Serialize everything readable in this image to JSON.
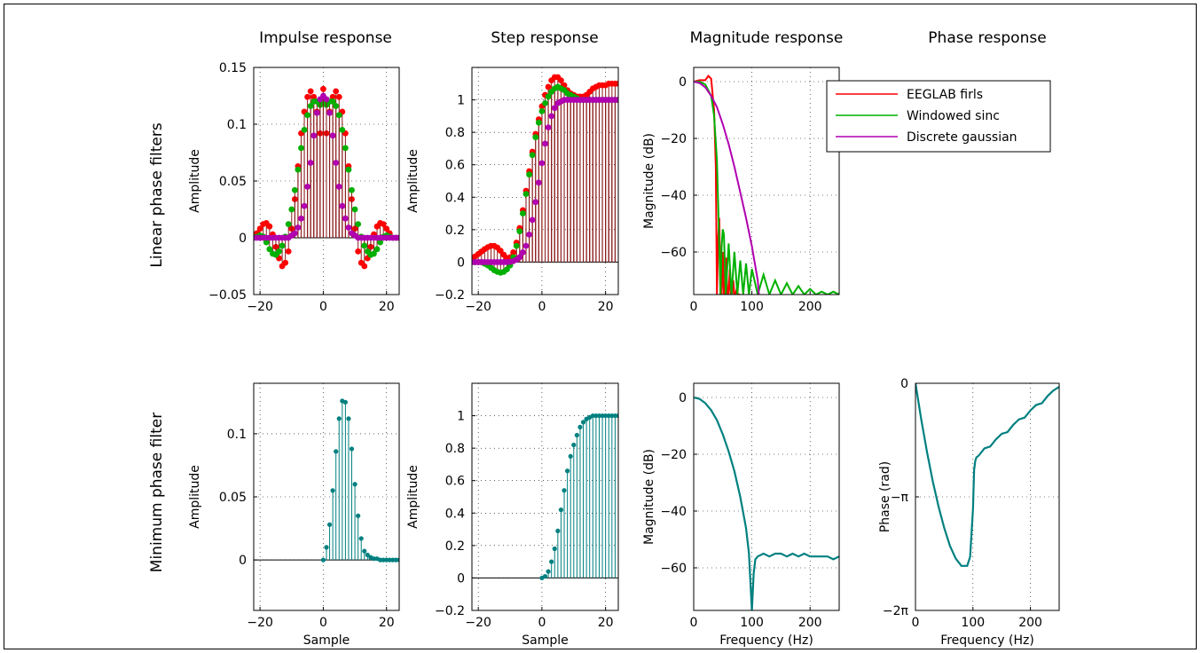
{
  "column_titles": [
    "Impulse response",
    "Step response",
    "Magnitude response",
    "Phase response"
  ],
  "row_labels": [
    "Linear phase filters",
    "Minimum phase filter"
  ],
  "legend": [
    "EEGLAB firls",
    "Windowed sinc",
    "Discrete gaussian"
  ],
  "colors": {
    "firls": "#ff0000",
    "sinc": "#00b000",
    "gauss": "#b000b0",
    "minphase": "#008080",
    "stem": "#8b1a1a"
  },
  "chart_data": [
    {
      "type": "stem",
      "id": "lin-impulse",
      "ylabel": "Amplitude",
      "xlim": [
        -22,
        24
      ],
      "ylim": [
        -0.05,
        0.15
      ],
      "grid": true,
      "xticks": [
        -20,
        0,
        20
      ],
      "yticks": [
        -0.05,
        0,
        0.05,
        0.1,
        0.15
      ],
      "ytick_labels": [
        "−0.05",
        "0",
        "0.05",
        "0.1",
        "0.15"
      ],
      "x": [
        -22,
        -21,
        -20,
        -19,
        -18,
        -17,
        -16,
        -15,
        -14,
        -13,
        -12,
        -11,
        -10,
        -9,
        -8,
        -7,
        -6,
        -5,
        -4,
        -3,
        -2,
        -1,
        0,
        1,
        2,
        3,
        4,
        5,
        6,
        7,
        8,
        9,
        10,
        11,
        12,
        13,
        14,
        15,
        16,
        17,
        18,
        19,
        20,
        21,
        22,
        23,
        24
      ],
      "series": [
        {
          "name": "EEGLAB firls",
          "values": [
            0.0,
            0.004,
            0.008,
            0.012,
            0.013,
            0.01,
            0.003,
            -0.008,
            -0.018,
            -0.025,
            -0.022,
            -0.012,
            0.008,
            0.034,
            0.063,
            0.092,
            0.111,
            0.124,
            0.129,
            0.124,
            0.111,
            0.092,
            0.131,
            0.092,
            0.111,
            0.124,
            0.129,
            0.124,
            0.111,
            0.092,
            0.063,
            0.034,
            0.008,
            -0.012,
            -0.022,
            -0.025,
            -0.018,
            -0.008,
            0.003,
            0.01,
            0.013,
            0.012,
            0.008,
            0.004,
            0.0,
            0.0,
            0.0
          ]
        },
        {
          "name": "Windowed sinc",
          "values": [
            0.0,
            0.001,
            0.002,
            0.001,
            -0.004,
            -0.01,
            -0.014,
            -0.015,
            -0.012,
            -0.007,
            0.001,
            0.012,
            0.025,
            0.042,
            0.06,
            0.079,
            0.095,
            0.108,
            0.116,
            0.12,
            0.12,
            0.117,
            0.12,
            0.117,
            0.12,
            0.12,
            0.116,
            0.108,
            0.095,
            0.079,
            0.06,
            0.042,
            0.025,
            0.012,
            0.001,
            -0.007,
            -0.012,
            -0.015,
            -0.014,
            -0.01,
            -0.004,
            0.001,
            0.002,
            0.001,
            0.0,
            0.0,
            0.0
          ]
        },
        {
          "name": "Discrete gaussian",
          "values": [
            0,
            0,
            0,
            0,
            0,
            0,
            0,
            0,
            0,
            0,
            0,
            0,
            0.002,
            0.004,
            0.009,
            0.017,
            0.028,
            0.045,
            0.066,
            0.09,
            0.11,
            0.122,
            0.125,
            0.122,
            0.11,
            0.09,
            0.066,
            0.045,
            0.028,
            0.017,
            0.009,
            0.004,
            0.002,
            0,
            0,
            0,
            0,
            0,
            0,
            0,
            0,
            0,
            0,
            0,
            0,
            0,
            0
          ]
        }
      ]
    },
    {
      "type": "stem",
      "id": "lin-step",
      "ylabel": "Amplitude",
      "xlim": [
        -22,
        24
      ],
      "ylim": [
        -0.2,
        1.2
      ],
      "grid": true,
      "xticks": [
        -20,
        0,
        20
      ],
      "yticks": [
        -0.2,
        0,
        0.2,
        0.4,
        0.6,
        0.8,
        1
      ],
      "ytick_labels": [
        "−0.2",
        "0",
        "0.2",
        "0.4",
        "0.6",
        "0.8",
        "1"
      ],
      "x": [
        -22,
        -21,
        -20,
        -19,
        -18,
        -17,
        -16,
        -15,
        -14,
        -13,
        -12,
        -11,
        -10,
        -9,
        -8,
        -7,
        -6,
        -5,
        -4,
        -3,
        -2,
        -1,
        0,
        1,
        2,
        3,
        4,
        5,
        6,
        7,
        8,
        9,
        10,
        11,
        12,
        13,
        14,
        15,
        16,
        17,
        18,
        19,
        20,
        21,
        22,
        23,
        24
      ],
      "series": [
        {
          "name": "EEGLAB firls",
          "values": [
            0.02,
            0.035,
            0.05,
            0.065,
            0.08,
            0.092,
            0.1,
            0.1,
            0.09,
            0.07,
            0.045,
            0.025,
            0.03,
            0.06,
            0.12,
            0.21,
            0.32,
            0.44,
            0.56,
            0.68,
            0.79,
            0.88,
            0.96,
            1.03,
            1.08,
            1.12,
            1.14,
            1.14,
            1.12,
            1.09,
            1.06,
            1.04,
            1.03,
            1.02,
            1.02,
            1.02,
            1.03,
            1.05,
            1.07,
            1.08,
            1.09,
            1.09,
            1.09,
            1.1,
            1.1,
            1.1,
            1.1
          ]
        },
        {
          "name": "Windowed sinc",
          "values": [
            0.0,
            0.0,
            0.0,
            0.0,
            -0.01,
            -0.02,
            -0.035,
            -0.05,
            -0.06,
            -0.065,
            -0.06,
            -0.045,
            -0.02,
            0.03,
            0.1,
            0.19,
            0.3,
            0.42,
            0.54,
            0.66,
            0.77,
            0.86,
            0.93,
            0.98,
            1.02,
            1.05,
            1.07,
            1.08,
            1.07,
            1.06,
            1.04,
            1.03,
            1.02,
            1.01,
            1.0,
            1.0,
            1.0,
            1.0,
            1.0,
            1.0,
            1.0,
            1.0,
            1.0,
            1.0,
            1.0,
            1.0,
            1.0
          ]
        },
        {
          "name": "Discrete gaussian",
          "values": [
            0,
            0,
            0,
            0,
            0,
            0,
            0,
            0,
            0,
            0,
            0,
            0,
            0.002,
            0.006,
            0.015,
            0.03,
            0.06,
            0.1,
            0.17,
            0.26,
            0.37,
            0.49,
            0.61,
            0.73,
            0.83,
            0.9,
            0.95,
            0.98,
            0.99,
            1.0,
            1.0,
            1.0,
            1.0,
            1.0,
            1.0,
            1.0,
            1.0,
            1.0,
            1.0,
            1.0,
            1.0,
            1.0,
            1.0,
            1.0,
            1.0,
            1.0,
            1.0
          ]
        }
      ]
    },
    {
      "type": "line",
      "id": "lin-mag",
      "ylabel": "Magnitude (dB)",
      "xlim": [
        0,
        250
      ],
      "ylim": [
        -75,
        5
      ],
      "grid": true,
      "xticks": [
        0,
        100,
        200
      ],
      "yticks": [
        -60,
        -40,
        -20,
        0
      ],
      "ytick_labels": [
        "−60",
        "−40",
        "−20",
        "0"
      ],
      "legend_position": "top-right",
      "series": [
        {
          "name": "EEGLAB firls",
          "x": [
            0,
            10,
            20,
            25,
            30,
            35,
            38,
            40,
            42,
            44,
            46,
            48,
            50,
            52,
            54,
            56,
            58,
            60,
            62,
            64,
            66,
            68,
            70,
            72,
            74,
            76,
            80
          ],
          "y": [
            0,
            0.5,
            0.5,
            2,
            1,
            -10,
            -30,
            -75,
            -55,
            -48,
            -75,
            -75,
            -60,
            -75,
            -75,
            -62,
            -75,
            -75,
            -66,
            -75,
            -75,
            -70,
            -75,
            -75,
            -73,
            -75,
            -75
          ]
        },
        {
          "name": "Windowed sinc",
          "x": [
            0,
            10,
            20,
            30,
            35,
            40,
            43,
            46,
            48,
            50,
            52,
            55,
            60,
            65,
            70,
            75,
            80,
            85,
            90,
            95,
            100,
            110,
            120,
            130,
            140,
            150,
            160,
            170,
            180,
            190,
            200,
            210,
            220,
            230,
            240,
            250
          ],
          "y": [
            0,
            0,
            -1,
            -5,
            -12,
            -28,
            -50,
            -75,
            -58,
            -52,
            -54,
            -75,
            -57,
            -75,
            -60,
            -75,
            -63,
            -75,
            -64,
            -75,
            -66,
            -75,
            -68,
            -75,
            -70,
            -75,
            -71,
            -75,
            -72,
            -75,
            -73,
            -75,
            -74,
            -75,
            -74,
            -75
          ]
        },
        {
          "name": "Discrete gaussian",
          "x": [
            0,
            10,
            20,
            30,
            40,
            50,
            60,
            70,
            80,
            90,
            100,
            110,
            112
          ],
          "y": [
            0,
            -0.5,
            -2,
            -5,
            -9,
            -15,
            -22,
            -30,
            -39,
            -48,
            -58,
            -70,
            -75
          ]
        }
      ]
    },
    {
      "type": "stem",
      "id": "min-impulse",
      "ylabel": "Amplitude",
      "xlabel": "Sample",
      "xlim": [
        -22,
        24
      ],
      "ylim": [
        -0.04,
        0.14
      ],
      "grid": true,
      "xticks": [
        -20,
        0,
        20
      ],
      "yticks": [
        0,
        0.05,
        0.1
      ],
      "ytick_labels": [
        "0",
        "0.05",
        "0.1"
      ],
      "x": [
        -22,
        -21,
        -20,
        -19,
        -18,
        -17,
        -16,
        -15,
        -14,
        -13,
        -12,
        -11,
        -10,
        -9,
        -8,
        -7,
        -6,
        -5,
        -4,
        -3,
        -2,
        -1,
        0,
        1,
        2,
        3,
        4,
        5,
        6,
        7,
        8,
        9,
        10,
        11,
        12,
        13,
        14,
        15,
        16,
        17,
        18,
        19,
        20,
        21,
        22,
        23,
        24
      ],
      "series": [
        {
          "name": "Minimum phase",
          "values": [
            0,
            0,
            0,
            0,
            0,
            0,
            0,
            0,
            0,
            0,
            0,
            0,
            0,
            0,
            0,
            0,
            0,
            0,
            0,
            0,
            0,
            0,
            0.0,
            0.01,
            0.028,
            0.055,
            0.086,
            0.112,
            0.126,
            0.125,
            0.112,
            0.088,
            0.06,
            0.035,
            0.017,
            0.007,
            0.004,
            0.002,
            0.001,
            0.001,
            0.0,
            0.0,
            0.0,
            0.0,
            0,
            0,
            0
          ]
        }
      ]
    },
    {
      "type": "stem",
      "id": "min-step",
      "ylabel": "Amplitude",
      "xlabel": "Sample",
      "xlim": [
        -22,
        24
      ],
      "ylim": [
        -0.2,
        1.2
      ],
      "grid": true,
      "xticks": [
        -20,
        0,
        20
      ],
      "yticks": [
        -0.2,
        0,
        0.2,
        0.4,
        0.6,
        0.8,
        1
      ],
      "ytick_labels": [
        "−0.2",
        "0",
        "0.2",
        "0.4",
        "0.6",
        "0.8",
        "1"
      ],
      "x": [
        -22,
        -21,
        -20,
        -19,
        -18,
        -17,
        -16,
        -15,
        -14,
        -13,
        -12,
        -11,
        -10,
        -9,
        -8,
        -7,
        -6,
        -5,
        -4,
        -3,
        -2,
        -1,
        0,
        1,
        2,
        3,
        4,
        5,
        6,
        7,
        8,
        9,
        10,
        11,
        12,
        13,
        14,
        15,
        16,
        17,
        18,
        19,
        20,
        21,
        22,
        23,
        24
      ],
      "series": [
        {
          "name": "Minimum phase",
          "values": [
            0,
            0,
            0,
            0,
            0,
            0,
            0,
            0,
            0,
            0,
            0,
            0,
            0,
            0,
            0,
            0,
            0,
            0,
            0,
            0,
            0,
            0,
            0.0,
            0.01,
            0.04,
            0.1,
            0.18,
            0.29,
            0.42,
            0.54,
            0.66,
            0.75,
            0.82,
            0.88,
            0.93,
            0.96,
            0.98,
            0.99,
            1.0,
            1.0,
            1.0,
            1.0,
            1.0,
            1.0,
            1.0,
            1.0,
            1.0
          ]
        }
      ]
    },
    {
      "type": "line",
      "id": "min-mag",
      "ylabel": "Magnitude (dB)",
      "xlabel": "Frequency (Hz)",
      "xlim": [
        0,
        250
      ],
      "ylim": [
        -75,
        5
      ],
      "grid": true,
      "xticks": [
        0,
        100,
        200
      ],
      "yticks": [
        -60,
        -40,
        -20,
        0
      ],
      "ytick_labels": [
        "−60",
        "−40",
        "−20",
        "0"
      ],
      "series": [
        {
          "name": "Minimum phase",
          "x": [
            0,
            10,
            20,
            30,
            40,
            50,
            60,
            70,
            80,
            90,
            95,
            100,
            103,
            106,
            110,
            120,
            130,
            140,
            150,
            160,
            170,
            180,
            190,
            200,
            210,
            220,
            230,
            240,
            250
          ],
          "y": [
            0,
            -0.5,
            -2,
            -4.5,
            -8,
            -13,
            -19,
            -26,
            -35,
            -46,
            -55,
            -75,
            -62,
            -57,
            -56,
            -55,
            -56,
            -55,
            -55,
            -56,
            -55,
            -56,
            -55,
            -56,
            -56,
            -56,
            -56,
            -57,
            -56
          ]
        }
      ]
    },
    {
      "type": "line",
      "id": "min-phase",
      "ylabel": "Phase (rad)",
      "xlabel": "Frequency (Hz)",
      "xlim": [
        0,
        250
      ],
      "ylim": [
        -6.2832,
        0
      ],
      "grid": true,
      "xticks": [
        0,
        100,
        200
      ],
      "yticks": [
        -6.2832,
        -3.1416,
        0
      ],
      "ytick_labels": [
        "−2π",
        "−π",
        "0"
      ],
      "series": [
        {
          "name": "Minimum phase",
          "x": [
            0,
            10,
            20,
            30,
            40,
            50,
            60,
            70,
            80,
            90,
            95,
            100,
            102,
            104,
            106,
            110,
            120,
            130,
            140,
            150,
            160,
            170,
            180,
            190,
            200,
            210,
            220,
            230,
            240,
            250
          ],
          "y": [
            0,
            -1.0,
            -1.9,
            -2.7,
            -3.4,
            -4.0,
            -4.5,
            -4.85,
            -5.05,
            -5.05,
            -4.8,
            -3.5,
            -2.4,
            -2.15,
            -2.05,
            -2.0,
            -1.8,
            -1.75,
            -1.55,
            -1.4,
            -1.35,
            -1.15,
            -1.0,
            -0.95,
            -0.75,
            -0.6,
            -0.55,
            -0.35,
            -0.2,
            -0.1
          ]
        }
      ]
    }
  ]
}
